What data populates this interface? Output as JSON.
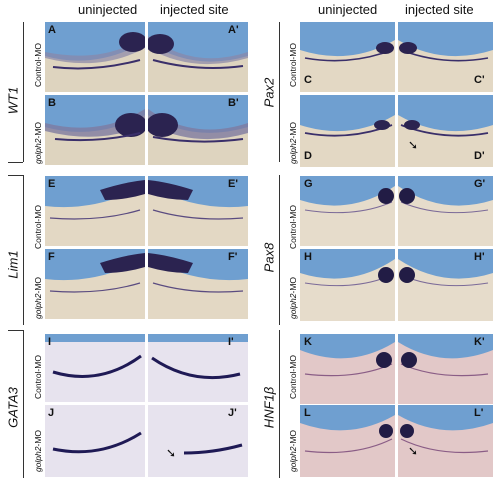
{
  "headers": {
    "left_uninjected": "uninjected",
    "left_injected": "injected site",
    "right_uninjected": "uninjected",
    "right_injected": "injected site"
  },
  "genes": {
    "wt1": "WT1",
    "lim1": "Lim1",
    "gata3": "GATA3",
    "pax2": "Pax2",
    "pax8": "Pax8",
    "hnf1b": "HNF1β"
  },
  "mo": {
    "control": "Control-MO",
    "golph2_prefix": "golph2",
    "golph2_suffix": "-MO"
  },
  "panel_labels": {
    "A": "A",
    "A2": "A'",
    "B": "B",
    "B2": "B'",
    "C": "C",
    "C2": "C'",
    "D": "D",
    "D2": "D'",
    "E": "E",
    "E2": "E'",
    "F": "F",
    "F2": "F'",
    "G": "G",
    "G2": "G'",
    "H": "H",
    "H2": "H'",
    "I": "I",
    "I2": "I'",
    "J": "J",
    "J2": "J'",
    "K": "K",
    "K2": "K'",
    "L": "L",
    "L2": "L'"
  },
  "colors": {
    "background_blue": "#6f9fd0",
    "embryo_tan": "#e6d9c3",
    "stain_purple": "#3a2f6a"
  }
}
